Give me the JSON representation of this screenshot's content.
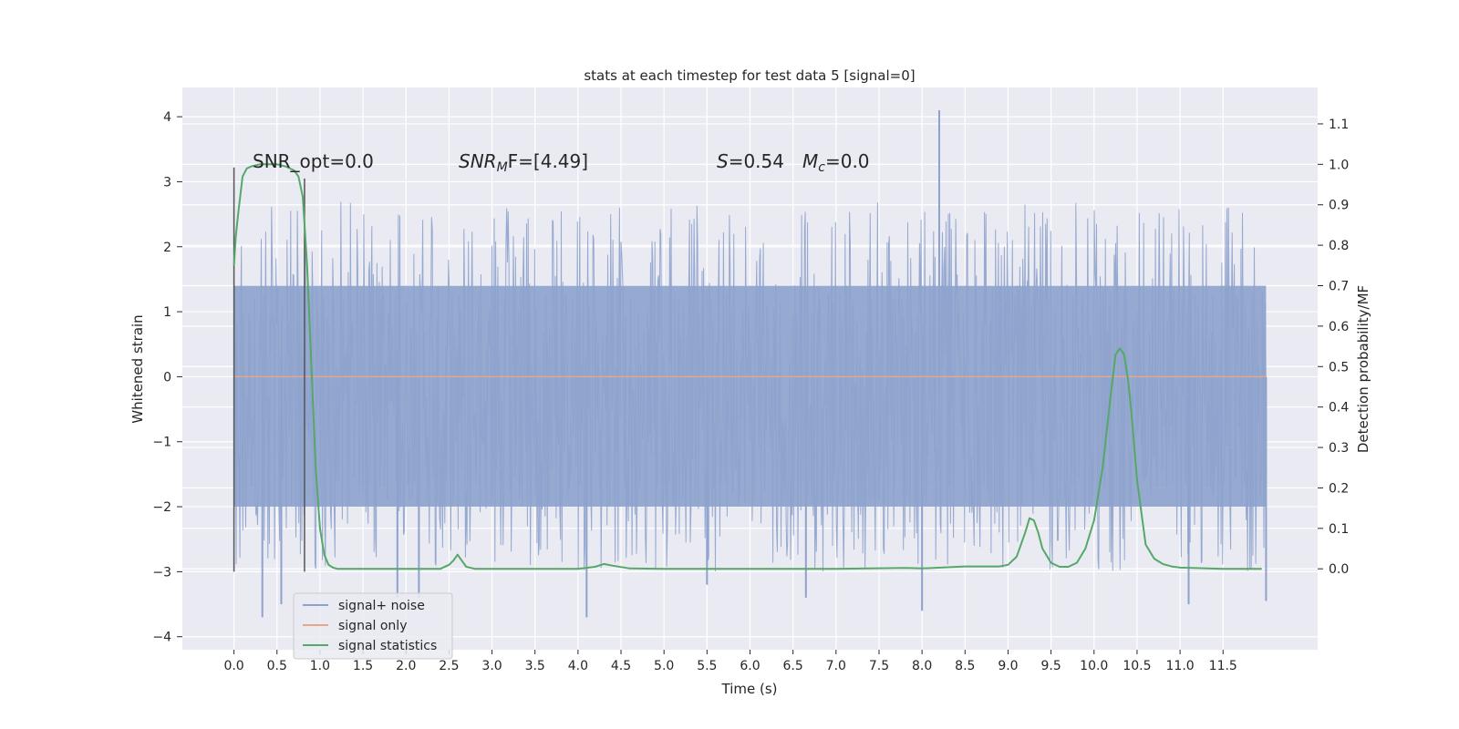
{
  "chart_data": {
    "type": "line",
    "title": "stats at each timestep for test data 5 [signal=0]",
    "xlabel": "Time (s)",
    "ylabel": "Whitened strain",
    "y2label": "Detection probability/MF",
    "xlim": [
      -0.6,
      12.6
    ],
    "ylim": [
      -4.2,
      4.45
    ],
    "y2lim": [
      -0.2,
      1.19
    ],
    "xticks": [
      0.0,
      0.5,
      1.0,
      1.5,
      2.0,
      2.5,
      3.0,
      3.5,
      4.0,
      4.5,
      5.0,
      5.5,
      6.0,
      6.5,
      7.0,
      7.5,
      8.0,
      8.5,
      9.0,
      9.5,
      10.0,
      10.5,
      11.0,
      11.5
    ],
    "xtick_labels": [
      "0.0",
      "0.5",
      "1.0",
      "1.5",
      "2.0",
      "2.5",
      "3.0",
      "3.5",
      "4.0",
      "4.5",
      "5.0",
      "5.5",
      "6.0",
      "6.5",
      "7.0",
      "7.5",
      "8.0",
      "8.5",
      "9.0",
      "9.5",
      "10.0",
      "10.5",
      "11.0",
      "11.5"
    ],
    "yticks": [
      -4,
      -3,
      -2,
      -1,
      0,
      1,
      2,
      3,
      4
    ],
    "ytick_labels": [
      "−4",
      "−3",
      "−2",
      "−1",
      "0",
      "1",
      "2",
      "3",
      "4"
    ],
    "y2ticks": [
      0.0,
      0.1,
      0.2,
      0.3,
      0.4,
      0.5,
      0.6,
      0.7,
      0.8,
      0.9,
      1.0,
      1.1
    ],
    "y2tick_labels": [
      "0.0",
      "0.1",
      "0.2",
      "0.3",
      "0.4",
      "0.5",
      "0.6",
      "0.7",
      "0.8",
      "0.9",
      "1.0",
      "1.1"
    ],
    "grid": true,
    "legend_position": "lower-left",
    "annotations": {
      "snr_opt": "SNR_opt=0.0",
      "snr_mf_sym": "SNR",
      "snr_mf_sub": "M",
      "snr_mf_rest": "F=[4.49]",
      "s_sym": "S",
      "s_rest": "=0.54",
      "mc_sym": "M",
      "mc_sub": "c",
      "mc_rest": "=0.0"
    },
    "series": [
      {
        "name": "signal+ noise",
        "color": "#8da2cc",
        "kind": "noise",
        "x_range": [
          0.0,
          12.0
        ],
        "band": [
          -2.0,
          1.4
        ],
        "x": [
          0.33,
          0.55,
          1.9,
          2.15,
          4.1,
          5.5,
          6.65,
          8.0,
          8.2,
          11.1,
          12.0
        ],
        "y": [
          -3.7,
          -3.5,
          -3.4,
          -3.4,
          -3.7,
          -3.2,
          -3.4,
          -3.6,
          4.1,
          -3.5,
          -3.45
        ]
      },
      {
        "name": "signal only",
        "color": "#e7a58a",
        "x": [
          0.0,
          12.0
        ],
        "y": [
          0.0,
          0.0
        ]
      },
      {
        "name": "signal statistics",
        "color": "#55a868",
        "axis": "right",
        "x": [
          0.0,
          0.02,
          0.05,
          0.1,
          0.15,
          0.2,
          0.3,
          0.4,
          0.5,
          0.6,
          0.7,
          0.75,
          0.8,
          0.85,
          0.9,
          0.95,
          1.0,
          1.05,
          1.1,
          1.15,
          1.2,
          1.3,
          1.5,
          2.0,
          2.4,
          2.5,
          2.55,
          2.6,
          2.65,
          2.7,
          2.8,
          3.0,
          3.5,
          4.0,
          4.2,
          4.3,
          4.4,
          4.6,
          5.0,
          6.0,
          7.0,
          7.8,
          8.0,
          8.5,
          8.9,
          9.0,
          9.1,
          9.2,
          9.25,
          9.3,
          9.35,
          9.4,
          9.5,
          9.6,
          9.7,
          9.8,
          9.9,
          10.0,
          10.1,
          10.2,
          10.25,
          10.3,
          10.35,
          10.4,
          10.45,
          10.5,
          10.6,
          10.7,
          10.8,
          10.9,
          11.0,
          11.5,
          11.95
        ],
        "y": [
          0.75,
          0.82,
          0.88,
          0.97,
          0.99,
          0.995,
          1.0,
          1.0,
          1.0,
          0.995,
          0.985,
          0.97,
          0.92,
          0.75,
          0.5,
          0.25,
          0.1,
          0.035,
          0.01,
          0.003,
          0.0,
          0.0,
          0.0,
          0.0,
          0.0,
          0.01,
          0.02,
          0.035,
          0.02,
          0.005,
          0.0,
          0.0,
          0.0,
          0.0,
          0.005,
          0.012,
          0.008,
          0.001,
          0.0,
          0.0,
          0.0,
          0.002,
          0.001,
          0.006,
          0.006,
          0.01,
          0.03,
          0.09,
          0.125,
          0.12,
          0.09,
          0.05,
          0.015,
          0.005,
          0.005,
          0.015,
          0.05,
          0.12,
          0.25,
          0.44,
          0.53,
          0.545,
          0.53,
          0.46,
          0.35,
          0.22,
          0.06,
          0.025,
          0.012,
          0.006,
          0.003,
          0.0,
          0.0
        ]
      }
    ],
    "vertical_markers": [
      {
        "x": 0.0,
        "y": [
          -3.0,
          3.22
        ]
      },
      {
        "x": 0.82,
        "y": [
          -3.0,
          3.05
        ]
      }
    ]
  }
}
